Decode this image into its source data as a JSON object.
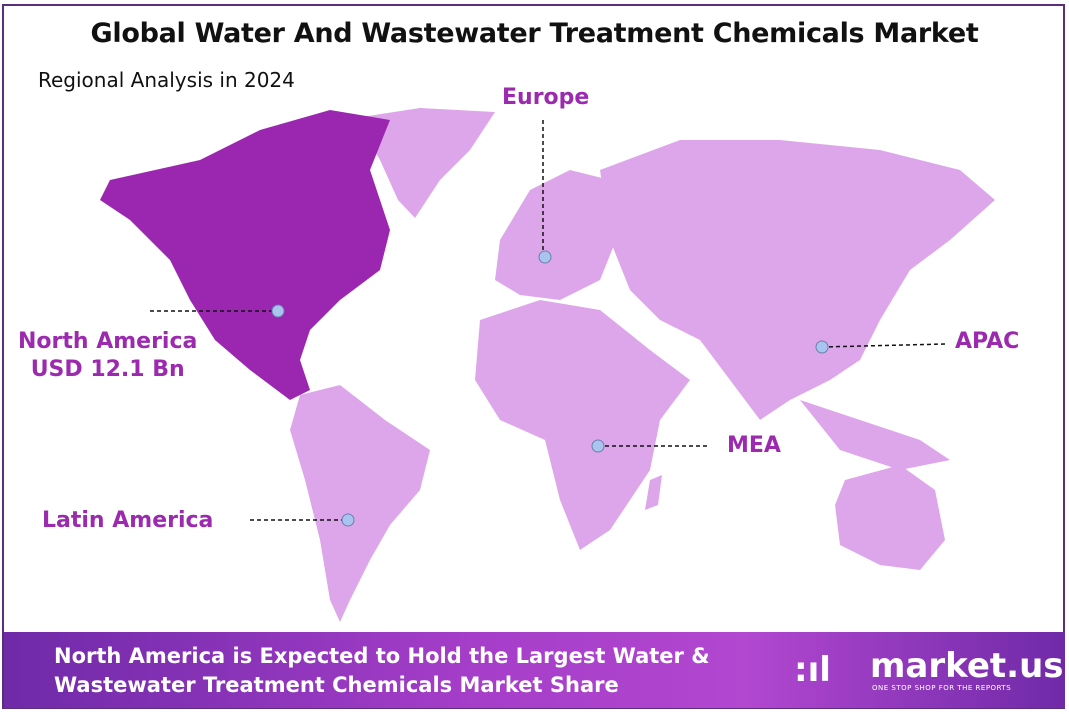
{
  "header": {
    "title": "Global Water And Wastewater Treatment Chemicals Market",
    "subtitle": "Regional Analysis in 2024"
  },
  "regions": [
    {
      "name": "North America",
      "value": "USD 12.1 Bn",
      "highlighted": true
    },
    {
      "name": "Europe"
    },
    {
      "name": "APAC"
    },
    {
      "name": "MEA"
    },
    {
      "name": "Latin America"
    }
  ],
  "colors": {
    "highlight": "#9b27b0",
    "land": "#dea6ea",
    "label": "#9b2aaf",
    "marker": "#a9c4ee",
    "footer": "#a63ec9"
  },
  "footer": {
    "text_line1": "North America is Expected to Hold the Largest Water &",
    "text_line2": "Wastewater Treatment Chemicals Market Share",
    "logo_name": "market.us",
    "logo_tagline": "ONE STOP SHOP FOR THE REPORTS"
  }
}
